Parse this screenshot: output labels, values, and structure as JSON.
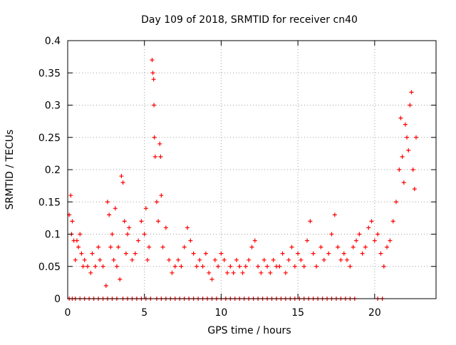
{
  "chart_data": {
    "type": "scatter",
    "title": "Day 109 of 2018, SRMTID for receiver cn40",
    "xlabel": "GPS time / hours",
    "ylabel": "SRMTID / TECUs",
    "xlim": [
      0,
      24
    ],
    "ylim": [
      0,
      0.4
    ],
    "xticks": [
      0,
      5,
      10,
      15,
      20
    ],
    "xtick_labels": [
      "0",
      "5",
      "10",
      "15",
      "20"
    ],
    "yticks": [
      0,
      0.05,
      0.1,
      0.15,
      0.2,
      0.25,
      0.3,
      0.35,
      0.4
    ],
    "ytick_labels": [
      "0",
      "0.05",
      "0.1",
      "0.15",
      "0.2",
      "0.25",
      "0.3",
      "0.35",
      "0.4"
    ],
    "grid": true,
    "marker": "plus",
    "color": "#ff0000",
    "series": [
      {
        "name": "SRMTID",
        "points": [
          [
            0.1,
            0.13
          ],
          [
            0.2,
            0.16
          ],
          [
            0.25,
            0.1
          ],
          [
            0.3,
            0.12
          ],
          [
            0.4,
            0.09
          ],
          [
            0.5,
            0.06
          ],
          [
            0.6,
            0.09
          ],
          [
            0.7,
            0.08
          ],
          [
            0.8,
            0.1
          ],
          [
            0.9,
            0.07
          ],
          [
            1.0,
            0.05
          ],
          [
            1.1,
            0.06
          ],
          [
            1.3,
            0.05
          ],
          [
            1.5,
            0.04
          ],
          [
            1.6,
            0.07
          ],
          [
            1.8,
            0.05
          ],
          [
            2.0,
            0.08
          ],
          [
            2.1,
            0.06
          ],
          [
            2.3,
            0.05
          ],
          [
            2.5,
            0.02
          ],
          [
            2.6,
            0.15
          ],
          [
            2.7,
            0.13
          ],
          [
            2.8,
            0.08
          ],
          [
            2.9,
            0.1
          ],
          [
            3.0,
            0.06
          ],
          [
            3.1,
            0.14
          ],
          [
            3.2,
            0.05
          ],
          [
            3.3,
            0.08
          ],
          [
            3.4,
            0.03
          ],
          [
            3.5,
            0.19
          ],
          [
            3.6,
            0.18
          ],
          [
            3.7,
            0.12
          ],
          [
            3.8,
            0.07
          ],
          [
            3.9,
            0.1
          ],
          [
            4.0,
            0.11
          ],
          [
            4.2,
            0.06
          ],
          [
            4.4,
            0.07
          ],
          [
            4.6,
            0.09
          ],
          [
            4.8,
            0.12
          ],
          [
            5.0,
            0.1
          ],
          [
            5.1,
            0.14
          ],
          [
            5.2,
            0.06
          ],
          [
            5.3,
            0.08
          ],
          [
            5.5,
            0.37
          ],
          [
            5.55,
            0.35
          ],
          [
            5.6,
            0.34
          ],
          [
            5.62,
            0.3
          ],
          [
            5.65,
            0.25
          ],
          [
            5.7,
            0.22
          ],
          [
            5.8,
            0.15
          ],
          [
            5.9,
            0.12
          ],
          [
            6.0,
            0.24
          ],
          [
            6.05,
            0.22
          ],
          [
            6.1,
            0.16
          ],
          [
            6.2,
            0.08
          ],
          [
            6.4,
            0.11
          ],
          [
            6.6,
            0.06
          ],
          [
            6.8,
            0.04
          ],
          [
            7.0,
            0.05
          ],
          [
            7.2,
            0.06
          ],
          [
            7.4,
            0.05
          ],
          [
            7.6,
            0.08
          ],
          [
            7.8,
            0.11
          ],
          [
            8.0,
            0.09
          ],
          [
            8.2,
            0.07
          ],
          [
            8.4,
            0.05
          ],
          [
            8.6,
            0.06
          ],
          [
            8.8,
            0.05
          ],
          [
            9.0,
            0.07
          ],
          [
            9.2,
            0.04
          ],
          [
            9.4,
            0.03
          ],
          [
            9.6,
            0.06
          ],
          [
            9.8,
            0.05
          ],
          [
            10.0,
            0.07
          ],
          [
            10.2,
            0.06
          ],
          [
            10.4,
            0.04
          ],
          [
            10.6,
            0.05
          ],
          [
            10.8,
            0.04
          ],
          [
            11.0,
            0.06
          ],
          [
            11.2,
            0.05
          ],
          [
            11.4,
            0.04
          ],
          [
            11.6,
            0.05
          ],
          [
            11.8,
            0.06
          ],
          [
            12.0,
            0.08
          ],
          [
            12.2,
            0.09
          ],
          [
            12.4,
            0.05
          ],
          [
            12.6,
            0.04
          ],
          [
            12.8,
            0.06
          ],
          [
            13.0,
            0.05
          ],
          [
            13.2,
            0.04
          ],
          [
            13.4,
            0.06
          ],
          [
            13.6,
            0.05
          ],
          [
            13.8,
            0.05
          ],
          [
            14.0,
            0.07
          ],
          [
            14.2,
            0.04
          ],
          [
            14.4,
            0.06
          ],
          [
            14.6,
            0.08
          ],
          [
            14.8,
            0.05
          ],
          [
            15.0,
            0.07
          ],
          [
            15.2,
            0.06
          ],
          [
            15.4,
            0.05
          ],
          [
            15.6,
            0.09
          ],
          [
            15.8,
            0.12
          ],
          [
            16.0,
            0.07
          ],
          [
            16.2,
            0.05
          ],
          [
            16.5,
            0.08
          ],
          [
            16.7,
            0.06
          ],
          [
            17.0,
            0.07
          ],
          [
            17.2,
            0.1
          ],
          [
            17.4,
            0.13
          ],
          [
            17.6,
            0.08
          ],
          [
            17.8,
            0.06
          ],
          [
            18.0,
            0.07
          ],
          [
            18.2,
            0.06
          ],
          [
            18.4,
            0.05
          ],
          [
            18.6,
            0.08
          ],
          [
            18.8,
            0.09
          ],
          [
            19.0,
            0.1
          ],
          [
            19.2,
            0.07
          ],
          [
            19.4,
            0.08
          ],
          [
            19.6,
            0.11
          ],
          [
            19.8,
            0.12
          ],
          [
            20.0,
            0.09
          ],
          [
            20.2,
            0.1
          ],
          [
            20.4,
            0.07
          ],
          [
            20.6,
            0.05
          ],
          [
            20.8,
            0.08
          ],
          [
            21.0,
            0.09
          ],
          [
            21.2,
            0.12
          ],
          [
            21.4,
            0.15
          ],
          [
            21.6,
            0.2
          ],
          [
            21.7,
            0.28
          ],
          [
            21.8,
            0.22
          ],
          [
            21.9,
            0.18
          ],
          [
            22.0,
            0.27
          ],
          [
            22.1,
            0.25
          ],
          [
            22.2,
            0.23
          ],
          [
            22.3,
            0.3
          ],
          [
            22.4,
            0.32
          ],
          [
            22.5,
            0.2
          ],
          [
            22.6,
            0.17
          ],
          [
            22.7,
            0.25
          ]
        ],
        "zero_points_x": [
          0.1,
          0.3,
          0.5,
          0.8,
          1.1,
          1.4,
          1.7,
          2.0,
          2.3,
          2.6,
          2.9,
          3.2,
          3.6,
          3.9,
          4.2,
          4.5,
          4.8,
          5.1,
          5.4,
          5.8,
          6.1,
          6.4,
          6.7,
          7.0,
          7.3,
          7.6,
          7.9,
          8.2,
          8.5,
          8.8,
          9.1,
          9.4,
          9.7,
          10.0,
          10.3,
          10.6,
          10.9,
          11.2,
          11.5,
          11.8,
          12.1,
          12.4,
          12.7,
          13.0,
          13.3,
          13.6,
          13.9,
          14.2,
          14.5,
          14.8,
          15.1,
          15.4,
          15.7,
          16.0,
          16.3,
          16.6,
          16.9,
          17.2,
          17.5,
          17.8,
          18.1,
          18.4,
          18.7,
          20.2,
          20.5
        ]
      }
    ]
  }
}
